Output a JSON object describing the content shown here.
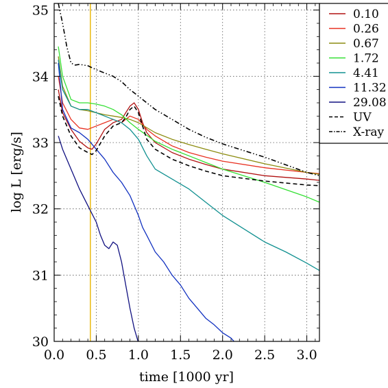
{
  "chart_data": {
    "type": "line",
    "xlabel": "time [1000 yr]",
    "ylabel": "log L [erg/s]",
    "xlim": [
      0.0,
      3.15
    ],
    "ylim": [
      30.0,
      35.1
    ],
    "xticks": [
      0.0,
      0.5,
      1.0,
      1.5,
      2.0,
      2.5,
      3.0
    ],
    "xtick_labels": [
      "0.0",
      "0.5",
      "1.0",
      "1.5",
      "2.0",
      "2.5",
      "3.0"
    ],
    "yticks": [
      30,
      31,
      32,
      33,
      34,
      35
    ],
    "ytick_labels": [
      "30",
      "31",
      "32",
      "33",
      "34",
      "35"
    ],
    "grid": true,
    "legend_position": "top-right",
    "vertical_marker": {
      "x": 0.43,
      "color": "#e8b400"
    },
    "series": [
      {
        "name": "0.10",
        "color": "#b01010",
        "dash": "solid",
        "x": [
          0.05,
          0.1,
          0.2,
          0.3,
          0.4,
          0.45,
          0.5,
          0.6,
          0.7,
          0.8,
          0.85,
          0.9,
          0.95,
          1.0,
          1.05,
          1.1,
          1.2,
          1.4,
          1.6,
          1.8,
          2.0,
          2.5,
          3.0,
          3.15
        ],
        "y": [
          33.8,
          33.45,
          33.2,
          33.02,
          32.92,
          32.9,
          32.98,
          33.2,
          33.3,
          33.35,
          33.45,
          33.55,
          33.6,
          33.5,
          33.3,
          33.15,
          33.0,
          32.85,
          32.75,
          32.67,
          32.6,
          32.5,
          32.45,
          32.43
        ]
      },
      {
        "name": "0.26",
        "color": "#e83020",
        "dash": "solid",
        "x": [
          0.05,
          0.1,
          0.2,
          0.3,
          0.4,
          0.5,
          0.6,
          0.7,
          0.8,
          0.9,
          1.0,
          1.1,
          1.2,
          1.4,
          1.6,
          1.8,
          2.0,
          2.5,
          3.0,
          3.15
        ],
        "y": [
          34.0,
          33.6,
          33.35,
          33.22,
          33.2,
          33.25,
          33.3,
          33.35,
          33.3,
          33.4,
          33.35,
          33.2,
          33.1,
          32.95,
          32.85,
          32.78,
          32.72,
          32.62,
          32.55,
          32.53
        ]
      },
      {
        "name": "0.67",
        "color": "#8c8c10",
        "dash": "solid",
        "x": [
          0.05,
          0.1,
          0.2,
          0.3,
          0.4,
          0.5,
          0.6,
          0.7,
          0.8,
          0.9,
          1.0,
          1.2,
          1.4,
          1.6,
          1.8,
          2.0,
          2.5,
          3.0,
          3.15
        ],
        "y": [
          34.3,
          33.85,
          33.55,
          33.5,
          33.48,
          33.45,
          33.42,
          33.4,
          33.38,
          33.35,
          33.3,
          33.15,
          33.05,
          32.97,
          32.9,
          32.83,
          32.68,
          32.55,
          32.52
        ]
      },
      {
        "name": "1.72",
        "color": "#33e033",
        "dash": "solid",
        "x": [
          0.05,
          0.1,
          0.2,
          0.3,
          0.4,
          0.5,
          0.6,
          0.7,
          0.8,
          0.9,
          1.0,
          1.2,
          1.4,
          1.6,
          1.8,
          2.0,
          2.5,
          3.0,
          3.15
        ],
        "y": [
          34.45,
          34.0,
          33.65,
          33.6,
          33.6,
          33.58,
          33.55,
          33.5,
          33.42,
          33.3,
          33.2,
          33.02,
          32.9,
          32.8,
          32.7,
          32.6,
          32.4,
          32.18,
          32.1
        ]
      },
      {
        "name": "4.41",
        "color": "#109090",
        "dash": "solid",
        "x": [
          0.05,
          0.1,
          0.2,
          0.3,
          0.4,
          0.5,
          0.6,
          0.7,
          0.8,
          0.9,
          1.0,
          1.1,
          1.2,
          1.4,
          1.6,
          1.8,
          2.0,
          2.25,
          2.5,
          2.75,
          3.0,
          3.15
        ],
        "y": [
          34.25,
          33.8,
          33.55,
          33.5,
          33.5,
          33.45,
          33.4,
          33.35,
          33.3,
          33.2,
          33.05,
          32.8,
          32.6,
          32.45,
          32.3,
          32.1,
          31.9,
          31.7,
          31.5,
          31.35,
          31.18,
          31.07
        ]
      },
      {
        "name": "11.32",
        "color": "#1030c0",
        "dash": "solid",
        "x": [
          0.05,
          0.1,
          0.2,
          0.3,
          0.4,
          0.5,
          0.6,
          0.7,
          0.8,
          0.9,
          0.95,
          1.0,
          1.05,
          1.1,
          1.2,
          1.3,
          1.4,
          1.5,
          1.6,
          1.7,
          1.8,
          1.9,
          2.0,
          2.1,
          2.15
        ],
        "y": [
          34.2,
          33.5,
          33.22,
          33.15,
          33.05,
          32.9,
          32.75,
          32.55,
          32.4,
          32.2,
          32.05,
          31.9,
          31.72,
          31.6,
          31.35,
          31.2,
          31.0,
          30.85,
          30.65,
          30.5,
          30.35,
          30.25,
          30.13,
          30.05,
          29.98
        ]
      },
      {
        "name": "29.08",
        "color": "#101080",
        "dash": "solid",
        "x": [
          0.05,
          0.1,
          0.2,
          0.3,
          0.4,
          0.5,
          0.55,
          0.6,
          0.65,
          0.7,
          0.75,
          0.8,
          0.85,
          0.9,
          0.95,
          1.0
        ],
        "y": [
          33.1,
          32.9,
          32.6,
          32.3,
          32.05,
          31.8,
          31.6,
          31.45,
          31.4,
          31.5,
          31.45,
          31.2,
          30.85,
          30.5,
          30.2,
          29.98
        ]
      },
      {
        "name": "UV",
        "color": "#000000",
        "dash": "dashed",
        "x": [
          0.05,
          0.1,
          0.2,
          0.3,
          0.4,
          0.45,
          0.5,
          0.6,
          0.7,
          0.8,
          0.85,
          0.9,
          0.95,
          1.0,
          1.05,
          1.1,
          1.2,
          1.4,
          1.6,
          1.8,
          2.0,
          2.5,
          3.0,
          3.15
        ],
        "y": [
          33.7,
          33.4,
          33.1,
          32.92,
          32.85,
          32.82,
          32.88,
          33.1,
          33.25,
          33.3,
          33.38,
          33.5,
          33.55,
          33.45,
          33.25,
          33.05,
          32.9,
          32.75,
          32.65,
          32.57,
          32.5,
          32.42,
          32.36,
          32.35
        ]
      },
      {
        "name": "X-ray",
        "color": "#000000",
        "dash": "dashdotdot",
        "x": [
          0.05,
          0.1,
          0.15,
          0.2,
          0.25,
          0.3,
          0.4,
          0.5,
          0.6,
          0.7,
          0.8,
          0.9,
          1.0,
          1.1,
          1.2,
          1.4,
          1.6,
          1.8,
          2.0,
          2.5,
          3.0,
          3.15
        ],
        "y": [
          35.1,
          34.8,
          34.45,
          34.2,
          34.17,
          34.18,
          34.16,
          34.1,
          34.05,
          34.0,
          33.92,
          33.8,
          33.7,
          33.6,
          33.5,
          33.35,
          33.2,
          33.08,
          32.98,
          32.78,
          32.55,
          32.5
        ]
      }
    ]
  }
}
